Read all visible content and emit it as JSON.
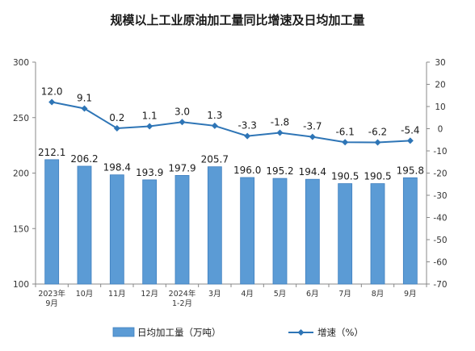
{
  "title": "规模以上工业原油加工量同比增速及日均加工量",
  "chart_data": {
    "type": "bar+line",
    "categories": [
      "2023年\n9月",
      "10月",
      "11月",
      "12月",
      "2024年\n1-2月",
      "3月",
      "4月",
      "5月",
      "6月",
      "7月",
      "8月",
      "9月"
    ],
    "series": [
      {
        "name": "日均加工量（万吨）",
        "type": "bar",
        "axis": "left",
        "color": "#5b9bd5",
        "values": [
          212.1,
          206.2,
          198.4,
          193.9,
          197.9,
          205.7,
          196.0,
          195.2,
          194.4,
          190.5,
          190.5,
          195.8
        ],
        "labels": [
          "212.1",
          "206.2",
          "198.4",
          "193.9",
          "197.9",
          "205.7",
          "196.0",
          "195.2",
          "194.4",
          "190.5",
          "190.5",
          "195.8"
        ]
      },
      {
        "name": "增速（%）",
        "type": "line",
        "axis": "right",
        "color": "#2e75b6",
        "values": [
          12.0,
          9.1,
          0.2,
          1.1,
          3.0,
          1.3,
          -3.3,
          -1.8,
          -3.7,
          -6.1,
          -6.2,
          -5.4
        ],
        "labels": [
          "12.0",
          "9.1",
          "0.2",
          "1.1",
          "3.0",
          "1.3",
          "-3.3",
          "-1.8",
          "-3.7",
          "-6.1",
          "-6.2",
          "-5.4"
        ]
      }
    ],
    "ylim_left": [
      100,
      300
    ],
    "yticks_left": [
      "300",
      "250",
      "200",
      "150",
      "100"
    ],
    "ylim_right": [
      -70,
      30
    ],
    "yticks_right": [
      "30",
      "20",
      "10",
      "0",
      "-10",
      "-20",
      "-30",
      "-40",
      "-50",
      "-60",
      "-70"
    ],
    "grid": false,
    "legend_position": "bottom"
  },
  "legend": {
    "bar_label": "日均加工量（万吨）",
    "line_label": "增速（%）"
  }
}
